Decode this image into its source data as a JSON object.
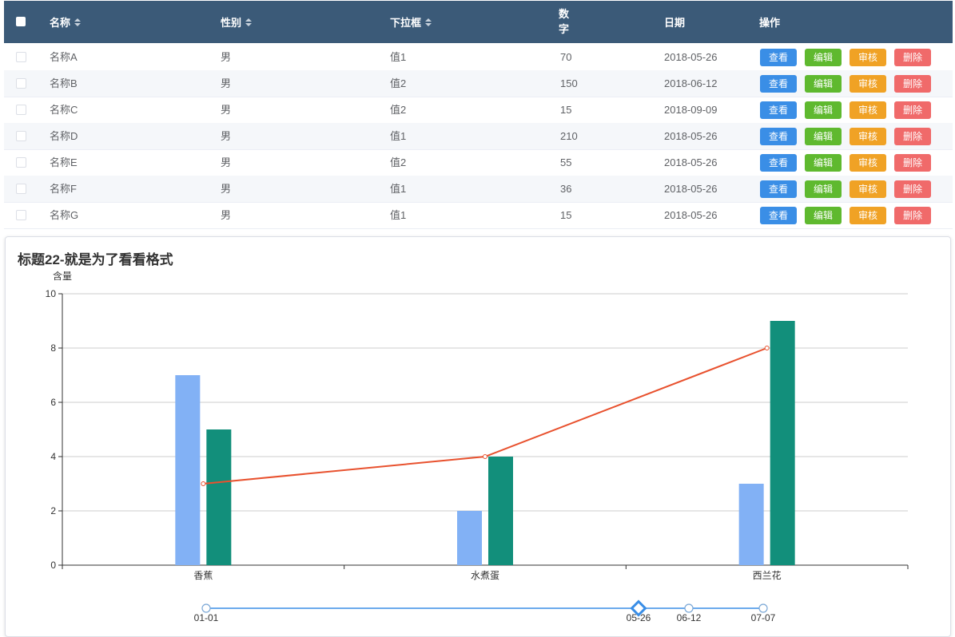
{
  "table": {
    "columns": {
      "name": "名称",
      "gender": "性别",
      "dropdown": "下拉框",
      "number_line1": "数",
      "number_line2": "字",
      "date": "日期",
      "actions": "操作"
    },
    "buttons": {
      "view": "查看",
      "edit": "编辑",
      "audit": "审核",
      "delete": "删除"
    },
    "rows": [
      {
        "name": "名称A",
        "gender": "男",
        "dropdown": "值1",
        "number": "70",
        "date": "2018-05-26"
      },
      {
        "name": "名称B",
        "gender": "男",
        "dropdown": "值2",
        "number": "150",
        "date": "2018-06-12"
      },
      {
        "name": "名称C",
        "gender": "男",
        "dropdown": "值2",
        "number": "15",
        "date": "2018-09-09"
      },
      {
        "name": "名称D",
        "gender": "男",
        "dropdown": "值1",
        "number": "210",
        "date": "2018-05-26"
      },
      {
        "name": "名称E",
        "gender": "男",
        "dropdown": "值2",
        "number": "55",
        "date": "2018-05-26"
      },
      {
        "name": "名称F",
        "gender": "男",
        "dropdown": "值1",
        "number": "36",
        "date": "2018-05-26"
      },
      {
        "name": "名称G",
        "gender": "男",
        "dropdown": "值1",
        "number": "15",
        "date": "2018-05-26"
      }
    ],
    "header_color": "#3b5a78"
  },
  "chart_card": {
    "title": "标题22-就是为了看看格式"
  },
  "chart_data": {
    "type": "bar",
    "title": "标题22-就是为了看看格式",
    "ylabel": "含量",
    "xlabel": "",
    "ylim": [
      0,
      10
    ],
    "yticks": [
      0,
      2,
      4,
      6,
      8,
      10
    ],
    "categories": [
      "香蕉",
      "水煮蛋",
      "西兰花"
    ],
    "series": [
      {
        "type": "bar",
        "values": [
          7,
          2,
          3
        ],
        "color": "#82b1f5"
      },
      {
        "type": "bar",
        "values": [
          5,
          4,
          9
        ],
        "color": "#128f7b"
      },
      {
        "type": "line",
        "values": [
          3,
          4,
          8
        ],
        "color": "#e8512e"
      }
    ],
    "grid": true,
    "timeline": {
      "labels": [
        "01-01",
        "05-26",
        "06-12",
        "07-07"
      ],
      "active": "05-26",
      "color": "#3a8ee6"
    }
  }
}
